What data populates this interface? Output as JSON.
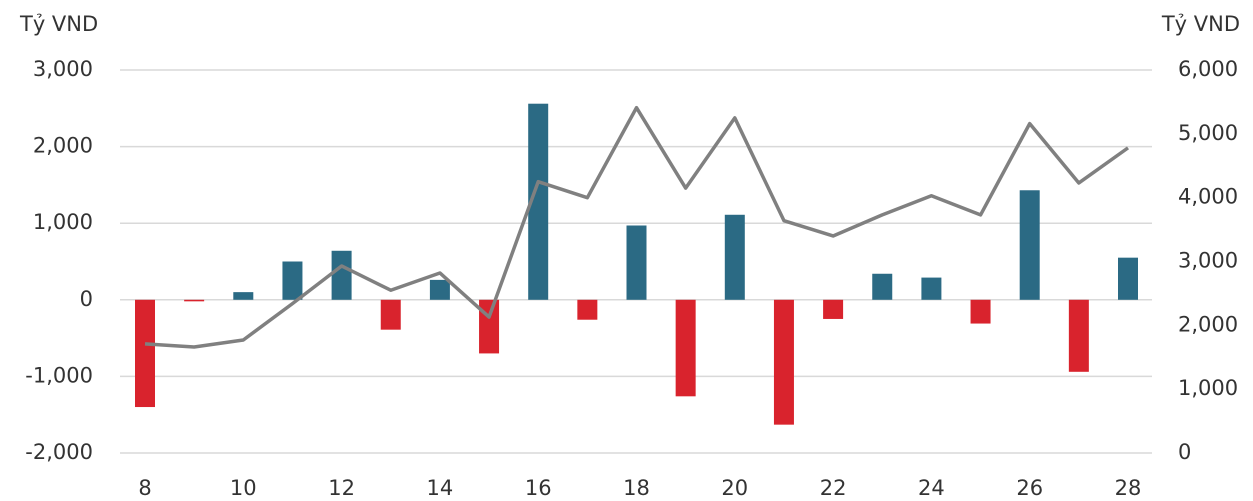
{
  "chart_data": {
    "type": "bar_line",
    "y_label": "Tỷ VND",
    "y2_label": "Tỷ VND",
    "x": [
      8,
      9,
      10,
      11,
      12,
      13,
      14,
      15,
      16,
      17,
      18,
      19,
      20,
      21,
      22,
      23,
      24,
      25,
      26,
      27,
      28
    ],
    "xlim": [
      8,
      28
    ],
    "xticks": [
      8,
      10,
      12,
      14,
      16,
      18,
      20,
      22,
      24,
      26,
      28
    ],
    "ylim": [
      -2000,
      3000
    ],
    "yticks": [
      {
        "value": -2000,
        "label": "-2,000"
      },
      {
        "value": -1000,
        "label": "-1,000"
      },
      0,
      {
        "value": 1000,
        "label": "1,000"
      },
      {
        "value": 2000,
        "label": "2,000"
      },
      {
        "value": 3000,
        "label": "3,000"
      }
    ],
    "y2lim": [
      0,
      6000
    ],
    "y2ticks": [
      0,
      {
        "value": 1000,
        "label": "1,000"
      },
      {
        "value": 2000,
        "label": "2,000"
      },
      {
        "value": 3000,
        "label": "3,000"
      },
      {
        "value": 4000,
        "label": "4,000"
      },
      {
        "value": 5000,
        "label": "5,000"
      },
      {
        "value": 6000,
        "label": "6,000"
      }
    ],
    "grid": true,
    "series": [
      {
        "kind": "bar",
        "positive_color": "#2b6a84",
        "negative_color": "#d9232d",
        "values": [
          -1400,
          -20,
          100,
          500,
          640,
          -390,
          260,
          -700,
          2560,
          -260,
          970,
          -1260,
          1110,
          -1630,
          -250,
          340,
          290,
          -310,
          1430,
          -940,
          550
        ]
      },
      {
        "kind": "line",
        "axis": "y2",
        "color": "#808080",
        "values": [
          1710,
          1660,
          1770,
          2340,
          2930,
          2550,
          2820,
          2130,
          4250,
          4000,
          5410,
          4150,
          5250,
          3640,
          3400,
          3730,
          4030,
          3730,
          5160,
          4230,
          4780
        ]
      }
    ]
  }
}
